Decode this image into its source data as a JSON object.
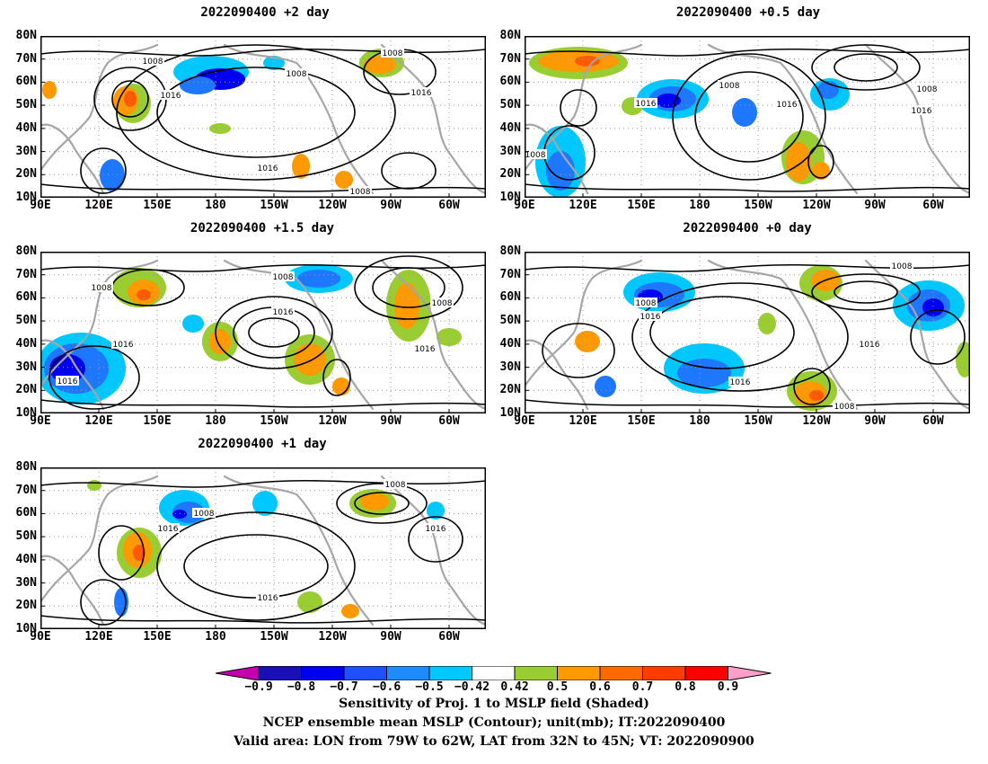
{
  "chart_data": [
    {
      "type": "heatmap",
      "title": "2022090400 +2 day",
      "lat_ticks": [
        "80N",
        "70N",
        "60N",
        "50N",
        "40N",
        "30N",
        "20N",
        "10N"
      ],
      "lon_ticks": [
        "90E",
        "120E",
        "150E",
        "180",
        "150W",
        "120W",
        "90W",
        "60W"
      ],
      "contour_labels": [
        "1008",
        "1008",
        "1016",
        "1008",
        "1016",
        "1016",
        "1008"
      ],
      "contour_levels": [
        1008,
        1016
      ],
      "colors": {
        "contour": "#000000",
        "coast": "#a6a6a6"
      }
    },
    {
      "type": "heatmap",
      "title": "2022090400 +0.5 day",
      "lat_ticks": [
        "80N",
        "70N",
        "60N",
        "50N",
        "40N",
        "30N",
        "20N",
        "10N"
      ],
      "lon_ticks": [
        "90E",
        "120E",
        "150E",
        "180",
        "150W",
        "120W",
        "90W",
        "60W"
      ],
      "contour_labels": [
        "1008",
        "1016",
        "1016",
        "1008",
        "1016",
        "1008"
      ],
      "contour_levels": [
        1008,
        1016
      ]
    },
    {
      "type": "heatmap",
      "title": "2022090400 +1.5 day",
      "lat_ticks": [
        "80N",
        "70N",
        "60N",
        "50N",
        "40N",
        "30N",
        "20N",
        "10N"
      ],
      "lon_ticks": [
        "90E",
        "120E",
        "150E",
        "180",
        "150W",
        "120W",
        "90W",
        "60W"
      ],
      "contour_labels": [
        "1008",
        "1008",
        "1016",
        "1016",
        "1016",
        "1008",
        "1016"
      ],
      "contour_levels": [
        1008,
        1016
      ]
    },
    {
      "type": "heatmap",
      "title": "2022090400 +0 day",
      "lat_ticks": [
        "80N",
        "70N",
        "60N",
        "50N",
        "40N",
        "30N",
        "20N",
        "10N"
      ],
      "lon_ticks": [
        "90E",
        "120E",
        "150E",
        "180",
        "150W",
        "120W",
        "90W",
        "60W"
      ],
      "contour_labels": [
        "1008",
        "1016",
        "1008",
        "1016",
        "1016",
        "1008"
      ],
      "contour_levels": [
        1008,
        1016
      ]
    },
    {
      "type": "heatmap",
      "title": "2022090400 +1 day",
      "lat_ticks": [
        "80N",
        "70N",
        "60N",
        "50N",
        "40N",
        "30N",
        "20N",
        "10N"
      ],
      "lon_ticks": [
        "90E",
        "120E",
        "150E",
        "180",
        "150W",
        "120W",
        "90W",
        "60W"
      ],
      "contour_labels": [
        "1008",
        "1008",
        "1016",
        "1016",
        "1016"
      ],
      "contour_levels": [
        1008,
        1016
      ]
    }
  ],
  "colorbar": {
    "labels": [
      "−0.9",
      "−0.8",
      "−0.7",
      "−0.6",
      "−0.5",
      "−0.42",
      "0.42",
      "0.5",
      "0.6",
      "0.7",
      "0.8",
      "0.9"
    ],
    "colors": [
      "#c400b0",
      "#1a0fb4",
      "#0000f0",
      "#1e50ff",
      "#1e8cff",
      "#00c8ff",
      "#ffffff",
      "#9acd32",
      "#ff9900",
      "#ff6a00",
      "#ff3c00",
      "#ff0000",
      "#ff9ec8"
    ]
  },
  "shading_colors": {
    "neg_strong": "#0000f0",
    "neg_mid": "#1e78ff",
    "neg_weak": "#00c8ff",
    "pos_weak": "#9acd32",
    "pos_mid": "#ff9900",
    "pos_strong": "#ff5a00"
  },
  "caption": {
    "line1": "Sensitivity of Proj. 1 to MSLP field (Shaded)",
    "line2": "NCEP ensemble mean MSLP (Contour); unit(mb); IT:2022090400",
    "line3": "Valid area: LON from 79W to 62W, LAT from 32N to 45N; VT: 2022090900"
  }
}
